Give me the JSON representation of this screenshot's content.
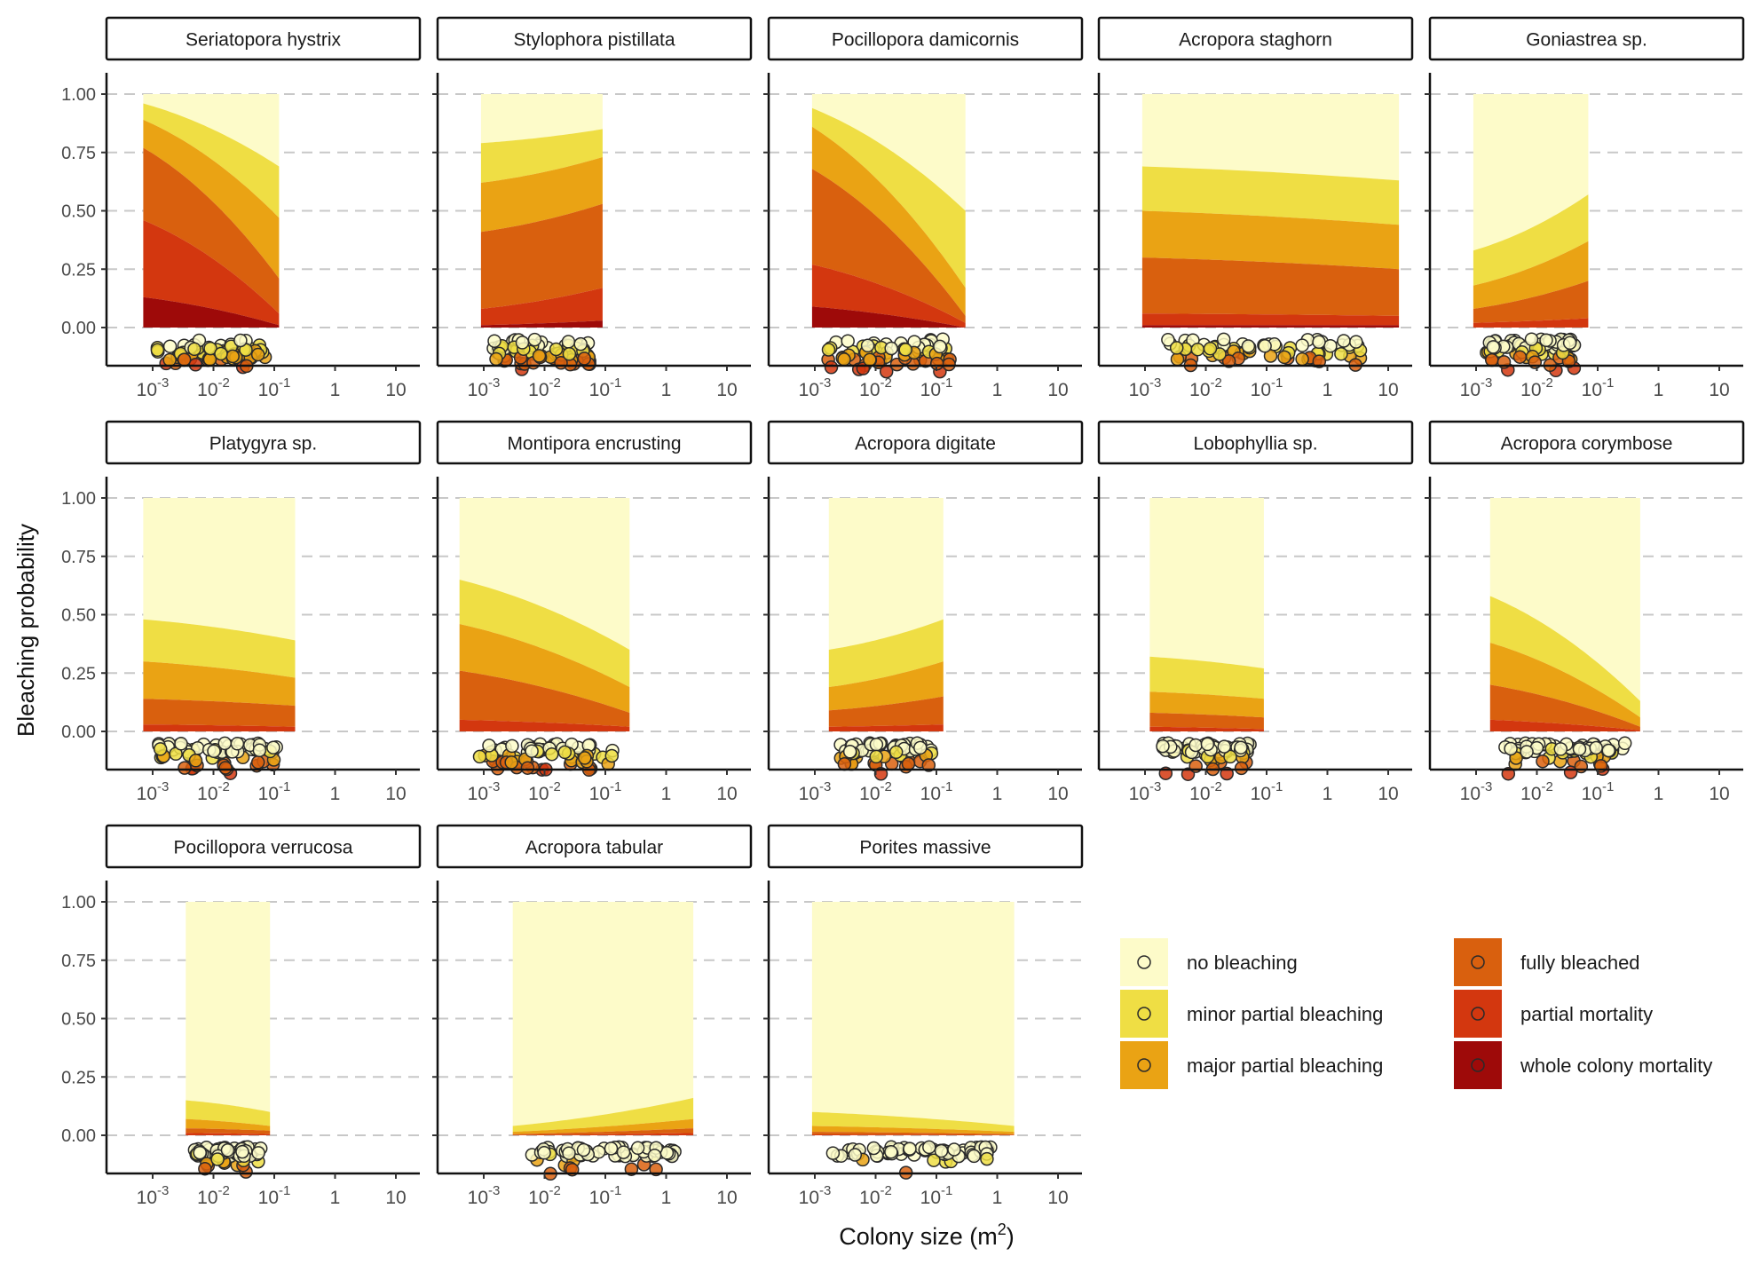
{
  "chart_data": {
    "type": "area",
    "ylabel": "Bleaching probability",
    "xlabel": "Colony size (m",
    "xlabel_sup": "2",
    "xlabel_end": ")",
    "x_scale": "log10",
    "xlim_m2": [
      0.0003,
      30
    ],
    "ylim": [
      -0.2,
      1.0
    ],
    "y_ticks": [
      "1.00",
      "0.75",
      "0.50",
      "0.25",
      "0.00"
    ],
    "y_tick_values": [
      1.0,
      0.75,
      0.5,
      0.25,
      0.0
    ],
    "x_ticks": [
      {
        "value": 0.001,
        "base": "10",
        "exp": "-3"
      },
      {
        "value": 0.01,
        "base": "10",
        "exp": "-2"
      },
      {
        "value": 0.1,
        "base": "10",
        "exp": "-1"
      },
      {
        "value": 1,
        "base": "1",
        "exp": ""
      },
      {
        "value": 10,
        "base": "10",
        "exp": ""
      }
    ],
    "grid": "horizontal dashed",
    "legend_position": "bottom-right",
    "categories": [
      {
        "name": "no bleaching",
        "color": "#FDFBC9"
      },
      {
        "name": "minor partial bleaching",
        "color": "#EFDE44"
      },
      {
        "name": "major partial bleaching",
        "color": "#EAA314"
      },
      {
        "name": "fully bleached",
        "color": "#D9600E"
      },
      {
        "name": "partial mortality",
        "color": "#D3370F"
      },
      {
        "name": "whole colony mortality",
        "color": "#9E0A09"
      }
    ],
    "panels": [
      {
        "title": "Seriatopora hystrix",
        "size_range": [
          0.0007,
          0.12
        ],
        "cum_start": [
          0.96,
          0.89,
          0.77,
          0.46,
          0.13
        ],
        "cum_end": [
          0.69,
          0.47,
          0.21,
          0.06,
          0.01
        ]
      },
      {
        "title": "Stylophora pistillata",
        "size_range": [
          0.0009,
          0.09
        ],
        "cum_start": [
          0.79,
          0.62,
          0.41,
          0.08,
          0.01
        ],
        "cum_end": [
          0.85,
          0.73,
          0.53,
          0.17,
          0.03
        ]
      },
      {
        "title": "Pocillopora damicornis",
        "size_range": [
          0.0009,
          0.3
        ],
        "cum_start": [
          0.94,
          0.86,
          0.68,
          0.27,
          0.09
        ],
        "cum_end": [
          0.5,
          0.17,
          0.05,
          0.02,
          0.0
        ]
      },
      {
        "title": "Acropora staghorn",
        "size_range": [
          0.0009,
          15
        ],
        "cum_start": [
          0.69,
          0.5,
          0.3,
          0.06,
          0.01
        ],
        "cum_end": [
          0.63,
          0.44,
          0.25,
          0.05,
          0.01
        ]
      },
      {
        "title": "Goniastrea sp.",
        "size_range": [
          0.0009,
          0.07
        ],
        "cum_start": [
          0.33,
          0.18,
          0.08,
          0.02,
          0.0
        ],
        "cum_end": [
          0.57,
          0.37,
          0.2,
          0.04,
          0.0
        ]
      },
      {
        "title": "Platygyra sp.",
        "size_range": [
          0.0007,
          0.22
        ],
        "cum_start": [
          0.48,
          0.3,
          0.14,
          0.03,
          0.0
        ],
        "cum_end": [
          0.39,
          0.23,
          0.11,
          0.02,
          0.0
        ]
      },
      {
        "title": "Montipora encrusting",
        "size_range": [
          0.0004,
          0.25
        ],
        "cum_start": [
          0.65,
          0.46,
          0.26,
          0.05,
          0.0
        ],
        "cum_end": [
          0.35,
          0.19,
          0.08,
          0.02,
          0.0
        ]
      },
      {
        "title": "Acropora digitate",
        "size_range": [
          0.0017,
          0.13
        ],
        "cum_start": [
          0.35,
          0.19,
          0.09,
          0.02,
          0.0
        ],
        "cum_end": [
          0.48,
          0.3,
          0.15,
          0.03,
          0.0
        ]
      },
      {
        "title": "Lobophyllia sp.",
        "size_range": [
          0.0012,
          0.09
        ],
        "cum_start": [
          0.32,
          0.17,
          0.08,
          0.02,
          0.0
        ],
        "cum_end": [
          0.27,
          0.14,
          0.06,
          0.01,
          0.0
        ]
      },
      {
        "title": "Acropora corymbose",
        "size_range": [
          0.0017,
          0.5
        ],
        "cum_start": [
          0.58,
          0.38,
          0.2,
          0.05,
          0.0
        ],
        "cum_end": [
          0.13,
          0.06,
          0.02,
          0.005,
          0.0
        ]
      },
      {
        "title": "Pocillopora verrucosa",
        "size_range": [
          0.0035,
          0.085
        ],
        "cum_start": [
          0.15,
          0.07,
          0.03,
          0.01,
          0.0
        ],
        "cum_end": [
          0.1,
          0.04,
          0.02,
          0.005,
          0.0
        ]
      },
      {
        "title": "Acropora tabular",
        "size_range": [
          0.003,
          2.8
        ],
        "cum_start": [
          0.04,
          0.015,
          0.005,
          0.001,
          0.0
        ],
        "cum_end": [
          0.16,
          0.07,
          0.03,
          0.01,
          0.0
        ]
      },
      {
        "title": "Porites massive",
        "size_range": [
          0.0009,
          1.9
        ],
        "cum_start": [
          0.1,
          0.04,
          0.015,
          0.004,
          0.0
        ],
        "cum_end": [
          0.04,
          0.015,
          0.005,
          0.001,
          0.0
        ]
      }
    ]
  }
}
